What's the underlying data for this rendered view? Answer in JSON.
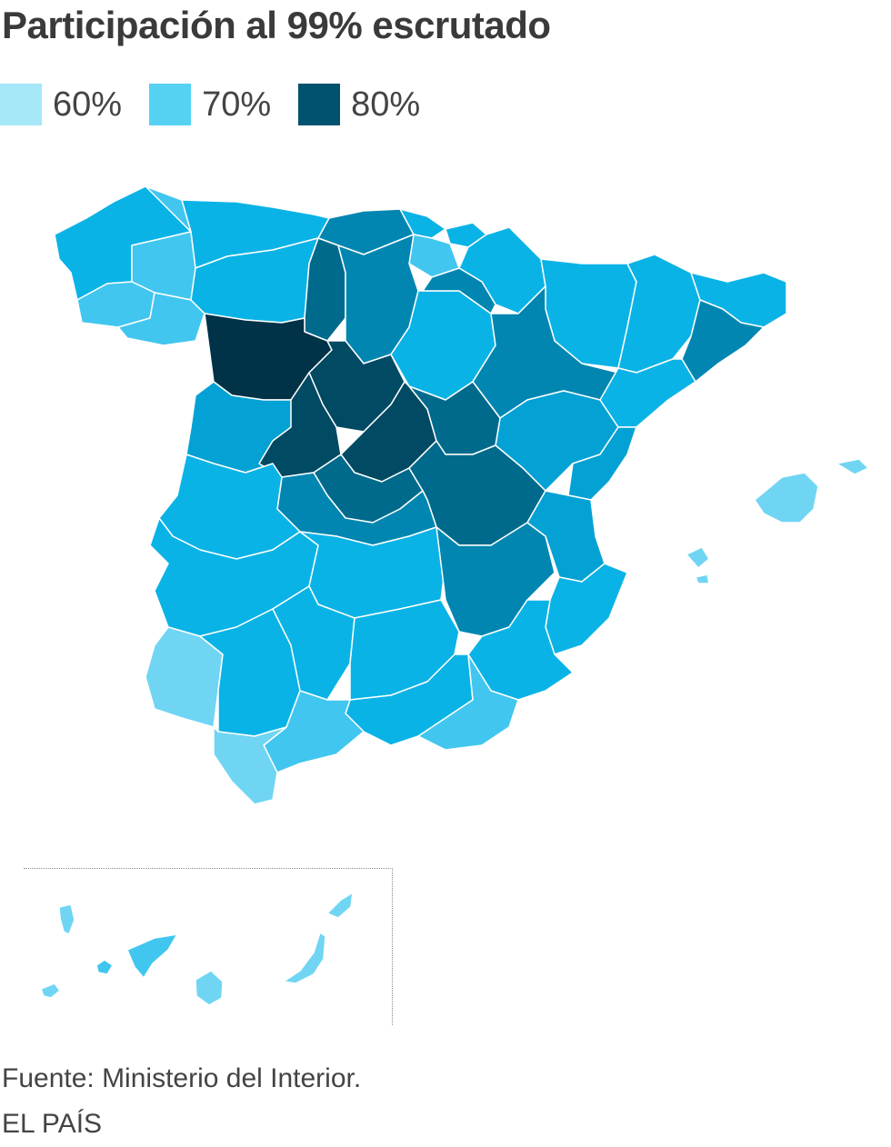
{
  "title": "Participación al 99% escrutado",
  "legend": [
    {
      "label": "60%",
      "color": "#a6e8f7"
    },
    {
      "label": "70%",
      "color": "#55d1f2"
    },
    {
      "label": "80%",
      "color": "#00526e"
    }
  ],
  "colors": {
    "turnout_60": "#6fd5f3",
    "turnout_65": "#41c6ef",
    "turnout_70": "#0ab3e6",
    "turnout_72": "#04a2d4",
    "turnout_75": "#0086b1",
    "turnout_78": "#006a8c",
    "turnout_80": "#004a64",
    "turnout_82": "#003248",
    "border": "#ffffff"
  },
  "footer": {
    "source": "Fuente: Ministerio del Interior.",
    "brand": "EL PAÍS"
  }
}
